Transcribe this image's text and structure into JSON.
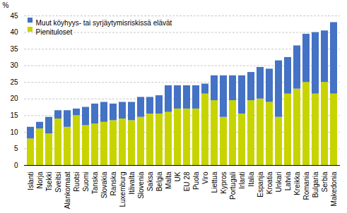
{
  "chart_data": {
    "type": "bar",
    "stacked": true,
    "categories": [
      "Islanti",
      "Norja",
      "Tsekki",
      "Sveitsi",
      "Alankomaat",
      "Ruotsi",
      "Suomi",
      "Tanska",
      "Slovakia",
      "Ranska",
      "Luxemburg",
      "Itävalta",
      "Slovenia",
      "Saksa",
      "Belgia",
      "Malta",
      "UK",
      "EU 28",
      "Puola",
      "Viro",
      "Liettua",
      "Kypros",
      "Portugali",
      "Irlanti",
      "Italia",
      "Espanja",
      "Kroatia",
      "Unkari",
      "Latvia",
      "Kreikka",
      "Romania",
      "Bulgaria",
      "Serbia",
      "Makedonia"
    ],
    "series": [
      {
        "name": "Pienituloset",
        "color": "#c8d400",
        "values": [
          8.0,
          11.0,
          9.5,
          14.0,
          11.5,
          15.0,
          12.0,
          12.5,
          13.0,
          13.5,
          14.0,
          13.5,
          14.5,
          15.5,
          15.5,
          16.0,
          17.0,
          17.0,
          17.0,
          21.5,
          19.5,
          14.5,
          19.5,
          15.5,
          19.5,
          20.0,
          19.0,
          14.5,
          21.5,
          23.0,
          25.0,
          21.5,
          25.0,
          21.5
        ]
      },
      {
        "name": "Muut köyhyys- tai syrjäytymisriskissä elävät",
        "color": "#4472c4",
        "values": [
          3.5,
          2.0,
          5.0,
          2.5,
          5.0,
          2.0,
          5.5,
          6.0,
          6.0,
          5.0,
          5.0,
          5.5,
          6.0,
          5.0,
          5.5,
          8.0,
          7.0,
          7.0,
          7.0,
          3.0,
          7.5,
          12.5,
          7.5,
          11.5,
          8.5,
          9.5,
          10.0,
          17.0,
          11.0,
          13.0,
          14.5,
          18.5,
          15.5,
          21.5
        ]
      }
    ],
    "ylabel": "%",
    "ylim": [
      0,
      45
    ],
    "yticks": [
      0,
      5,
      10,
      15,
      20,
      25,
      30,
      35,
      40,
      45
    ],
    "grid": true,
    "legend": "upper left"
  }
}
